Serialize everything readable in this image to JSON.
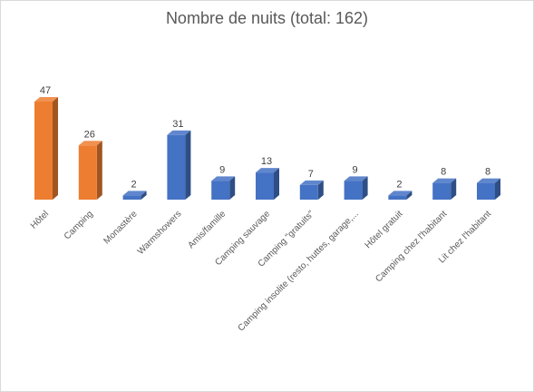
{
  "chart_data": {
    "type": "bar",
    "title": "Nombre de nuits (total: 162)",
    "xlabel": "",
    "ylabel": "",
    "ylim": [
      0,
      47
    ],
    "grid": false,
    "legend": "none",
    "categories": [
      "Hôtel",
      "Camping",
      "Monastère",
      "Warmshowers",
      "Amis/famille",
      "Camping sauvage",
      "Camping \"gratuits\"",
      "Camping insolite (resto, huttes, garage,...",
      "Hôtel gratuit",
      "Camping chez l'habitant",
      "Lit chez l'habitant"
    ],
    "values": [
      47,
      26,
      2,
      31,
      9,
      13,
      7,
      9,
      2,
      8,
      8
    ],
    "bar_colors": [
      "#ed7d31",
      "#ed7d31",
      "#4472c4",
      "#4472c4",
      "#4472c4",
      "#4472c4",
      "#4472c4",
      "#4472c4",
      "#4472c4",
      "#4472c4",
      "#4472c4"
    ]
  }
}
